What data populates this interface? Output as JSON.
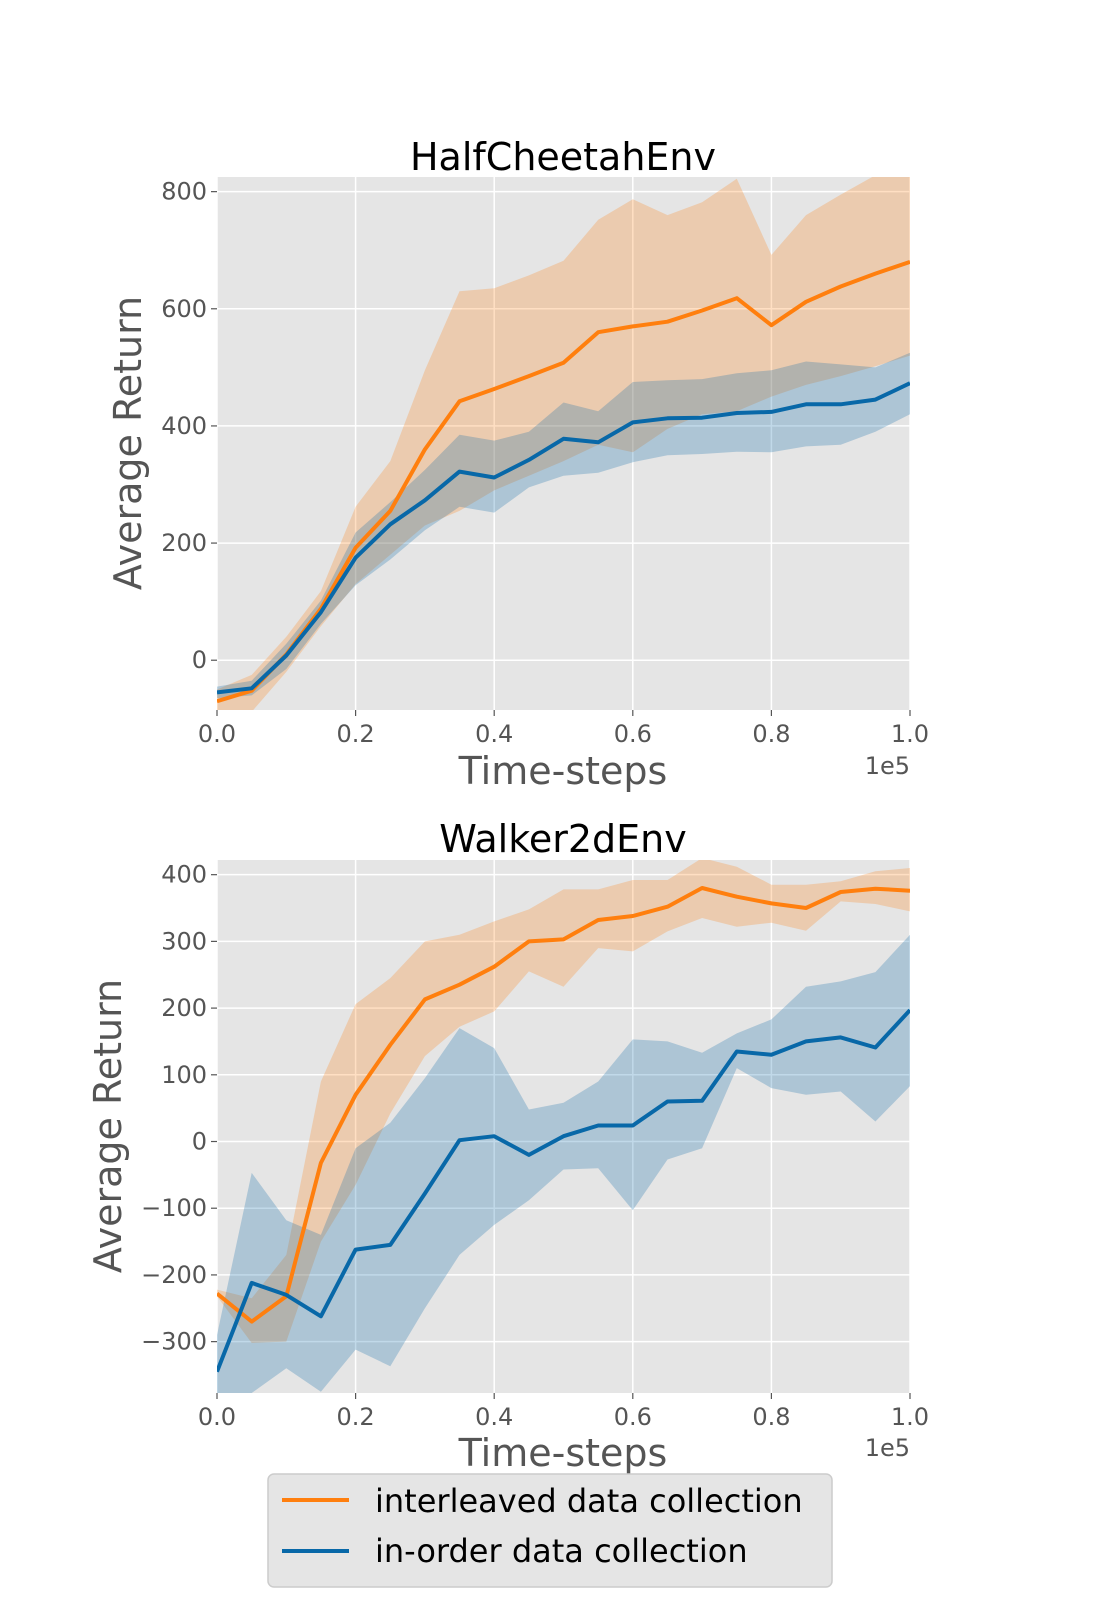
{
  "colors": {
    "interleaved": "#ff7f0e",
    "inorder": "#0868a8",
    "interleaved_band": "#f3c8a4",
    "inorder_band": "#b0cbdc",
    "plot_bg": "#e5e5e5",
    "grid": "#ffffff"
  },
  "legend": {
    "items": [
      {
        "label": "interleaved data collection",
        "color": "#ff7f0e"
      },
      {
        "label": "in-order data collection",
        "color": "#0868a8"
      }
    ]
  },
  "chart_data": [
    {
      "type": "line",
      "title": "HalfCheetahEnv",
      "xlabel": "Time-steps",
      "ylabel": "Average Return",
      "x_offset_label": "1e5",
      "xlim": [
        0.0,
        1.0
      ],
      "ylim": [
        -85,
        825
      ],
      "xticks": [
        0.0,
        0.2,
        0.4,
        0.6,
        0.8,
        1.0
      ],
      "xtick_labels": [
        "0.0",
        "0.2",
        "0.4",
        "0.6",
        "0.8",
        "1.0"
      ],
      "yticks": [
        0,
        200,
        400,
        600,
        800
      ],
      "ytick_labels": [
        "0",
        "200",
        "400",
        "600",
        "800"
      ],
      "grid": true,
      "x": [
        0.0,
        0.05,
        0.1,
        0.15,
        0.2,
        0.25,
        0.3,
        0.35,
        0.4,
        0.45,
        0.5,
        0.55,
        0.6,
        0.65,
        0.7,
        0.75,
        0.8,
        0.85,
        0.9,
        0.95,
        1.0
      ],
      "series": [
        {
          "name": "interleaved data collection",
          "key": "interleaved",
          "values": [
            -70,
            -52,
            10,
            88,
            192,
            255,
            360,
            442,
            463,
            485,
            508,
            560,
            570,
            578,
            597,
            618,
            572,
            612,
            638,
            660,
            680
          ],
          "upper": [
            -50,
            -25,
            40,
            118,
            262,
            340,
            495,
            630,
            635,
            657,
            682,
            752,
            787,
            760,
            782,
            822,
            692,
            760,
            795,
            828,
            835
          ],
          "lower": [
            -92,
            -88,
            -20,
            58,
            130,
            180,
            230,
            255,
            290,
            315,
            340,
            368,
            355,
            395,
            420,
            425,
            450,
            470,
            485,
            502,
            520
          ]
        },
        {
          "name": "in-order data collection",
          "key": "inorder",
          "values": [
            -55,
            -48,
            8,
            82,
            175,
            232,
            273,
            322,
            312,
            342,
            378,
            372,
            406,
            413,
            414,
            422,
            424,
            437,
            437,
            445,
            473
          ],
          "upper": [
            -45,
            -35,
            28,
            102,
            218,
            270,
            325,
            385,
            375,
            390,
            440,
            425,
            475,
            478,
            480,
            490,
            495,
            510,
            505,
            500,
            525
          ],
          "lower": [
            -65,
            -60,
            -15,
            62,
            128,
            172,
            222,
            262,
            252,
            295,
            315,
            320,
            338,
            350,
            352,
            356,
            355,
            365,
            368,
            390,
            420
          ]
        }
      ]
    },
    {
      "type": "line",
      "title": "Walker2dEnv",
      "xlabel": "Time-steps",
      "ylabel": "Average Return",
      "x_offset_label": "1e5",
      "xlim": [
        0.0,
        1.0
      ],
      "ylim": [
        -377,
        422
      ],
      "xticks": [
        0.0,
        0.2,
        0.4,
        0.6,
        0.8,
        1.0
      ],
      "xtick_labels": [
        "0.0",
        "0.2",
        "0.4",
        "0.6",
        "0.8",
        "1.0"
      ],
      "yticks": [
        -300,
        -200,
        -100,
        0,
        100,
        200,
        300,
        400
      ],
      "ytick_labels": [
        "−300",
        "−200",
        "−100",
        "0",
        "100",
        "200",
        "300",
        "400"
      ],
      "grid": true,
      "x": [
        0.0,
        0.05,
        0.1,
        0.15,
        0.2,
        0.25,
        0.3,
        0.35,
        0.4,
        0.45,
        0.5,
        0.55,
        0.6,
        0.65,
        0.7,
        0.75,
        0.8,
        0.85,
        0.9,
        0.95,
        1.0
      ],
      "series": [
        {
          "name": "interleaved data collection",
          "key": "interleaved",
          "values": [
            -228,
            -270,
            -232,
            -32,
            70,
            145,
            213,
            235,
            262,
            300,
            303,
            332,
            338,
            352,
            380,
            367,
            357,
            350,
            374,
            379,
            376
          ],
          "upper": [
            -222,
            -235,
            -170,
            90,
            206,
            245,
            300,
            310,
            330,
            348,
            378,
            378,
            392,
            392,
            425,
            412,
            385,
            385,
            390,
            405,
            410
          ],
          "lower": [
            -232,
            -302,
            -300,
            -150,
            -65,
            42,
            128,
            172,
            195,
            255,
            232,
            290,
            285,
            315,
            335,
            322,
            328,
            316,
            360,
            356,
            345
          ]
        },
        {
          "name": "in-order data collection",
          "key": "inorder",
          "values": [
            -345,
            -212,
            -230,
            -262,
            -162,
            -155,
            -78,
            2,
            8,
            -20,
            8,
            24,
            24,
            60,
            61,
            135,
            130,
            150,
            156,
            141,
            197
          ],
          "upper": [
            -290,
            -47,
            -118,
            -140,
            -10,
            28,
            95,
            170,
            140,
            48,
            58,
            90,
            153,
            150,
            133,
            162,
            183,
            232,
            240,
            254,
            310
          ],
          "lower": [
            -420,
            -377,
            -340,
            -375,
            -312,
            -337,
            -250,
            -170,
            -125,
            -88,
            -42,
            -40,
            -103,
            -27,
            -10,
            110,
            80,
            70,
            75,
            30,
            83
          ]
        }
      ]
    }
  ]
}
